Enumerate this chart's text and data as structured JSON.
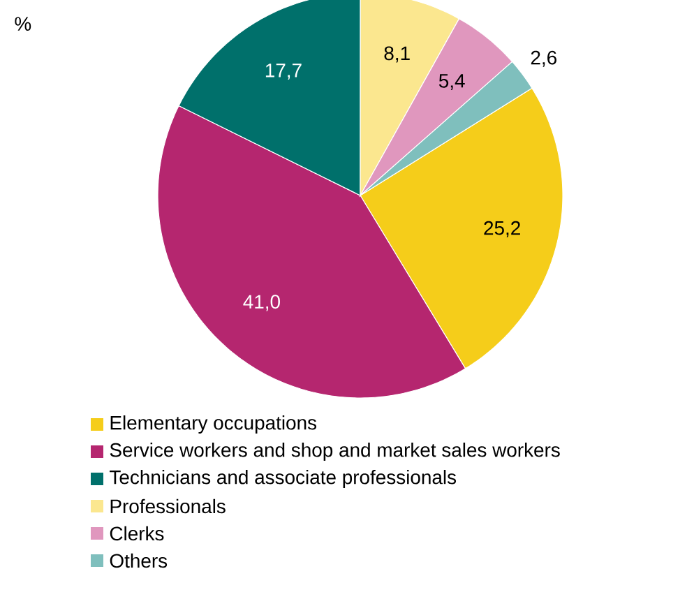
{
  "chart_data": {
    "type": "pie",
    "annotations": [
      "%"
    ],
    "categories": [
      "Elementary occupations",
      "Service workers and shop and market sales workers",
      "Technicians and associate professionals",
      "Professionals",
      "Clerks",
      "Others"
    ],
    "values": [
      25.2,
      41.0,
      17.7,
      8.1,
      5.4,
      2.6
    ],
    "value_labels": [
      "25,2",
      "41,0",
      "17,7",
      "8,1",
      "5,4",
      "2,6"
    ],
    "colors": [
      "#f5cd1a",
      "#b5266f",
      "#00706b",
      "#fbe78f",
      "#e097be",
      "#7fbfbd"
    ],
    "legend": "bottom"
  }
}
